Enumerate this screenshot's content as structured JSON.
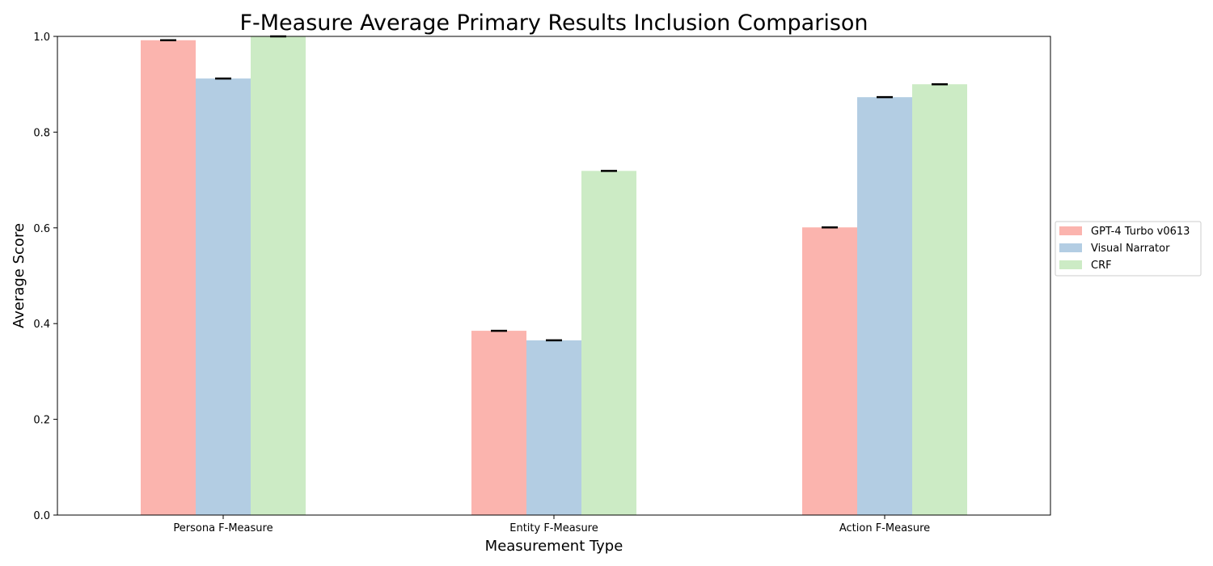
{
  "chart_data": {
    "type": "bar",
    "title": "F-Measure Average Primary Results Inclusion Comparison",
    "xlabel": "Measurement Type",
    "ylabel": "Average Score",
    "categories": [
      "Persona F-Measure",
      "Entity F-Measure",
      "Action F-Measure"
    ],
    "series": [
      {
        "name": "GPT-4 Turbo v0613",
        "color": "#fbb4ae",
        "values": [
          0.992,
          0.385,
          0.601
        ]
      },
      {
        "name": "Visual Narrator",
        "color": "#b3cde3",
        "values": [
          0.912,
          0.365,
          0.873
        ]
      },
      {
        "name": "CRF",
        "color": "#ccebc5",
        "values": [
          1.0,
          0.719,
          0.9
        ]
      }
    ],
    "error_bar_color": "#000000",
    "ylim": [
      0,
      1.0
    ],
    "yticks": [
      "0.0",
      "0.2",
      "0.4",
      "0.6",
      "0.8",
      "1.0"
    ],
    "ytick_values": [
      0,
      0.2,
      0.4,
      0.6,
      0.8,
      1.0
    ],
    "grid": false,
    "legend_position": "right"
  }
}
